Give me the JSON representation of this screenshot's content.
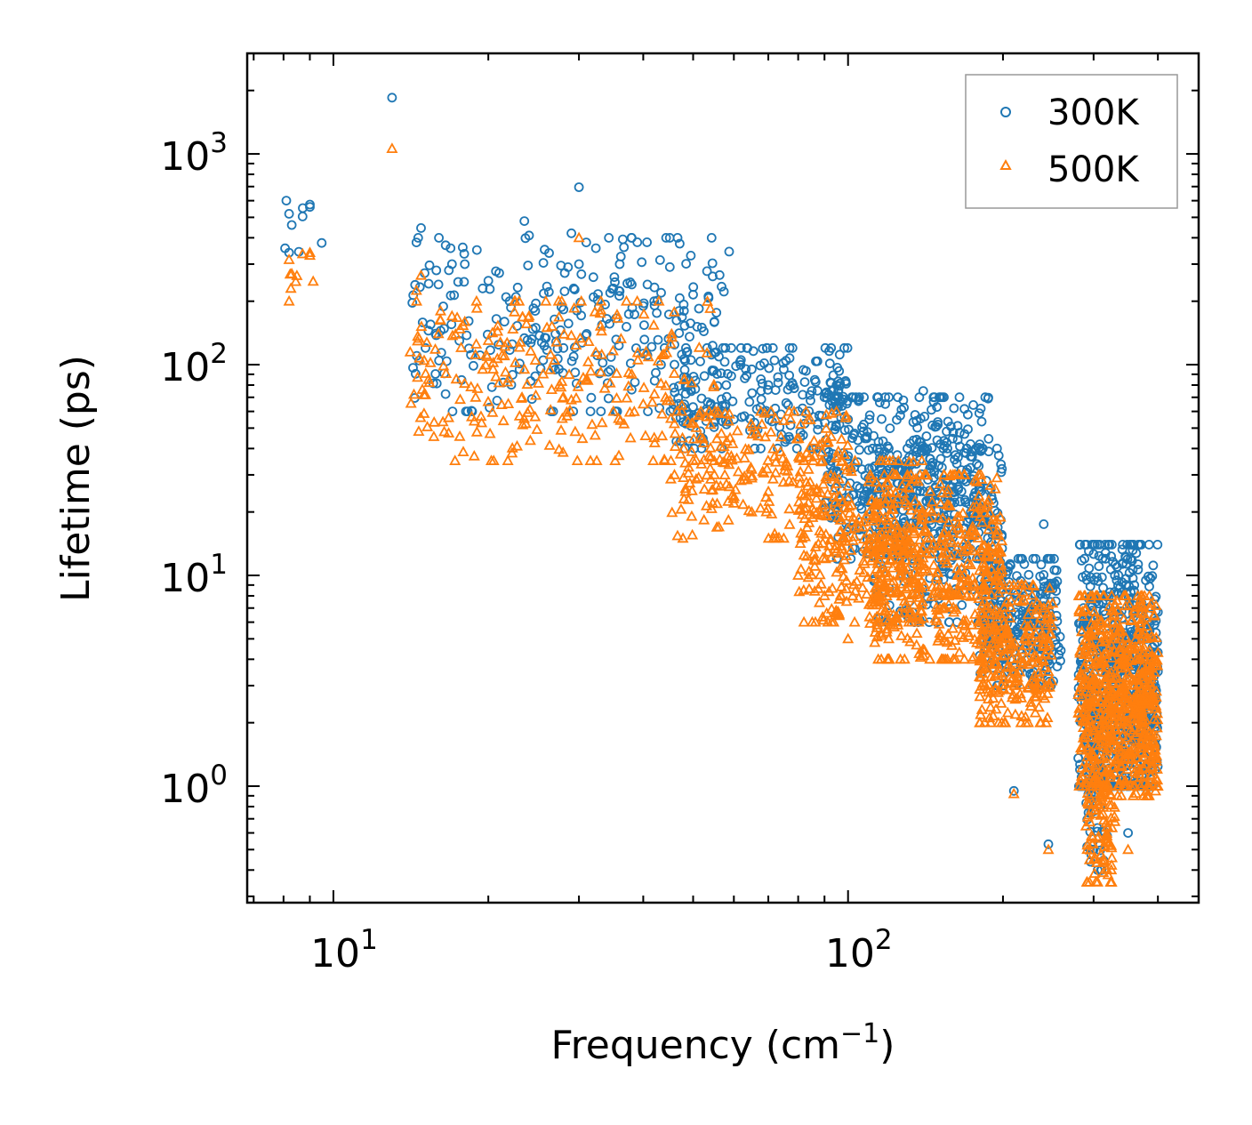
{
  "chart_data": {
    "type": "scatter",
    "xscale": "log",
    "yscale": "log",
    "xlabel": "Frequency (cm",
    "xlabel_superscript": "−1",
    "xlabel_suffix": ")",
    "ylabel": "Lifetime (ps)",
    "xlim": [
      6.8,
      480
    ],
    "ylim": [
      0.28,
      3000
    ],
    "x_ticks": [
      {
        "value": 10,
        "base": "10",
        "exp": "1"
      },
      {
        "value": 100,
        "base": "10",
        "exp": "2"
      }
    ],
    "y_ticks": [
      {
        "value": 1,
        "base": "10",
        "exp": "0"
      },
      {
        "value": 10,
        "base": "10",
        "exp": "1"
      },
      {
        "value": 100,
        "base": "10",
        "exp": "2"
      },
      {
        "value": 1000,
        "base": "10",
        "exp": "3"
      }
    ],
    "legend_position": "top-right",
    "series": [
      {
        "name": "300K",
        "marker": "circle",
        "color": "#1f77b4",
        "anchor_points": [
          [
            8.2,
            520
          ],
          [
            8.3,
            460
          ],
          [
            8.2,
            340
          ],
          [
            9.0,
            575
          ],
          [
            9.0,
            560
          ],
          [
            13.0,
            1850
          ],
          [
            14.5,
            380
          ],
          [
            14.8,
            445
          ],
          [
            15.1,
            120
          ],
          [
            15.3,
            145
          ],
          [
            16.0,
            240
          ],
          [
            17.0,
            300
          ],
          [
            18.0,
            300
          ],
          [
            19.0,
            350
          ],
          [
            19.5,
            230
          ],
          [
            20.0,
            250
          ],
          [
            21.5,
            160
          ],
          [
            22.0,
            200
          ],
          [
            23.0,
            95
          ],
          [
            23.5,
            480
          ],
          [
            24.0,
            410
          ],
          [
            26.0,
            235
          ],
          [
            27.0,
            140
          ],
          [
            28.0,
            120
          ],
          [
            29.0,
            420
          ],
          [
            30.0,
            695
          ],
          [
            30.0,
            300
          ],
          [
            31.0,
            380
          ],
          [
            32.0,
            260
          ],
          [
            34.0,
            165
          ],
          [
            35.0,
            230
          ],
          [
            36.0,
            300
          ],
          [
            38.0,
            240
          ],
          [
            40.0,
            190
          ],
          [
            42.0,
            200
          ],
          [
            44.0,
            120
          ],
          [
            46.0,
            100
          ],
          [
            48.0,
            180
          ],
          [
            50.0,
            215
          ],
          [
            52.0,
            150
          ],
          [
            55.0,
            160
          ],
          [
            58.0,
            80
          ],
          [
            60.0,
            55
          ],
          [
            65.0,
            95
          ],
          [
            70.0,
            80
          ],
          [
            75.0,
            95
          ],
          [
            80.0,
            60
          ],
          [
            85.0,
            75
          ],
          [
            90.0,
            70
          ],
          [
            95.0,
            80
          ],
          [
            100.0,
            55
          ],
          [
            110.0,
            55
          ],
          [
            120.0,
            40
          ],
          [
            130.0,
            35
          ],
          [
            140.0,
            75
          ],
          [
            150.0,
            30
          ],
          [
            160.0,
            25
          ],
          [
            170.0,
            40
          ],
          [
            180.0,
            20
          ],
          [
            200.0,
            11
          ],
          [
            210.0,
            0.95
          ],
          [
            240.0,
            17.5
          ],
          [
            245.0,
            0.53
          ],
          [
            245.0,
            4.0
          ],
          [
            290.0,
            10
          ],
          [
            300.0,
            0.5
          ],
          [
            310.0,
            0.4
          ],
          [
            320.0,
            14
          ],
          [
            330.0,
            10
          ],
          [
            350.0,
            0.6
          ],
          [
            360.0,
            9
          ],
          [
            380.0,
            5
          ],
          [
            400.0,
            6.7
          ],
          [
            400.0,
            3.5
          ]
        ],
        "clusters": [
          {
            "x": [
              8,
              9.5
            ],
            "y": [
              300,
              600
            ],
            "n": 6
          },
          {
            "x": [
              14,
              60
            ],
            "y": [
              60,
              400
            ],
            "n": 260
          },
          {
            "x": [
              45,
              100
            ],
            "y": [
              40,
              120
            ],
            "n": 220
          },
          {
            "x": [
              90,
              190
            ],
            "y": [
              12,
              70
            ],
            "n": 380
          },
          {
            "x": [
              110,
              200
            ],
            "y": [
              6,
              40
            ],
            "n": 300
          },
          {
            "x": [
              180,
              260
            ],
            "y": [
              3,
              12
            ],
            "n": 260
          },
          {
            "x": [
              280,
              400
            ],
            "y": [
              1,
              14
            ],
            "n": 520
          },
          {
            "x": [
              290,
              320
            ],
            "y": [
              0.4,
              3
            ],
            "n": 90
          },
          {
            "x": [
              330,
              400
            ],
            "y": [
              1,
              4
            ],
            "n": 100
          }
        ]
      },
      {
        "name": "500K",
        "marker": "triangle",
        "color": "#ff7f0e",
        "anchor_points": [
          [
            8.2,
            315
          ],
          [
            8.3,
            270
          ],
          [
            8.2,
            200
          ],
          [
            9.0,
            340
          ],
          [
            9.0,
            330
          ],
          [
            13.0,
            1060
          ],
          [
            14.5,
            225
          ],
          [
            14.8,
            265
          ],
          [
            15.1,
            72
          ],
          [
            15.3,
            85
          ],
          [
            16.0,
            140
          ],
          [
            17.0,
            170
          ],
          [
            18.0,
            160
          ],
          [
            19.0,
            185
          ],
          [
            19.5,
            95
          ],
          [
            20.0,
            130
          ],
          [
            21.5,
            110
          ],
          [
            23.0,
            57
          ],
          [
            23.5,
            95
          ],
          [
            24.0,
            170
          ],
          [
            26.0,
            150
          ],
          [
            28.0,
            70
          ],
          [
            30.0,
            400
          ],
          [
            31.0,
            85
          ],
          [
            33.0,
            175
          ],
          [
            35.0,
            60
          ],
          [
            38.0,
            90
          ],
          [
            40.0,
            65
          ],
          [
            42.0,
            45
          ],
          [
            44.0,
            35
          ],
          [
            46.0,
            30
          ],
          [
            50.0,
            35
          ],
          [
            55.0,
            30
          ],
          [
            60.0,
            22
          ],
          [
            65.0,
            20
          ],
          [
            70.0,
            25
          ],
          [
            75.0,
            15
          ],
          [
            80.0,
            10
          ],
          [
            82.0,
            8.5
          ],
          [
            90.0,
            8
          ],
          [
            100.0,
            5
          ],
          [
            110.0,
            20
          ],
          [
            120.0,
            5
          ],
          [
            130.0,
            15
          ],
          [
            140.0,
            20
          ],
          [
            150.0,
            8
          ],
          [
            160.0,
            4
          ],
          [
            170.0,
            8
          ],
          [
            180.0,
            3.3
          ],
          [
            200.0,
            5
          ],
          [
            210.0,
            0.92
          ],
          [
            240.0,
            7
          ],
          [
            245.0,
            0.5
          ],
          [
            245.0,
            3.5
          ],
          [
            300.0,
            0.45
          ],
          [
            320.0,
            0.38
          ],
          [
            330.0,
            5
          ],
          [
            350.0,
            0.5
          ],
          [
            360.0,
            3
          ],
          [
            400.0,
            4.3
          ],
          [
            400.0,
            1.0
          ]
        ],
        "clusters": [
          {
            "x": [
              8,
              9.5
            ],
            "y": [
              190,
              350
            ],
            "n": 6
          },
          {
            "x": [
              14,
              55
            ],
            "y": [
              35,
              200
            ],
            "n": 240
          },
          {
            "x": [
              45,
              100
            ],
            "y": [
              15,
              60
            ],
            "n": 220
          },
          {
            "x": [
              80,
              140
            ],
            "y": [
              6,
              35
            ],
            "n": 280
          },
          {
            "x": [
              110,
              200
            ],
            "y": [
              4,
              30
            ],
            "n": 480
          },
          {
            "x": [
              180,
              250
            ],
            "y": [
              2,
              9
            ],
            "n": 260
          },
          {
            "x": [
              280,
              400
            ],
            "y": [
              1,
              8
            ],
            "n": 520
          },
          {
            "x": [
              290,
              330
            ],
            "y": [
              0.35,
              2.5
            ],
            "n": 140
          },
          {
            "x": [
              330,
              400
            ],
            "y": [
              0.9,
              4
            ],
            "n": 120
          }
        ]
      }
    ]
  }
}
